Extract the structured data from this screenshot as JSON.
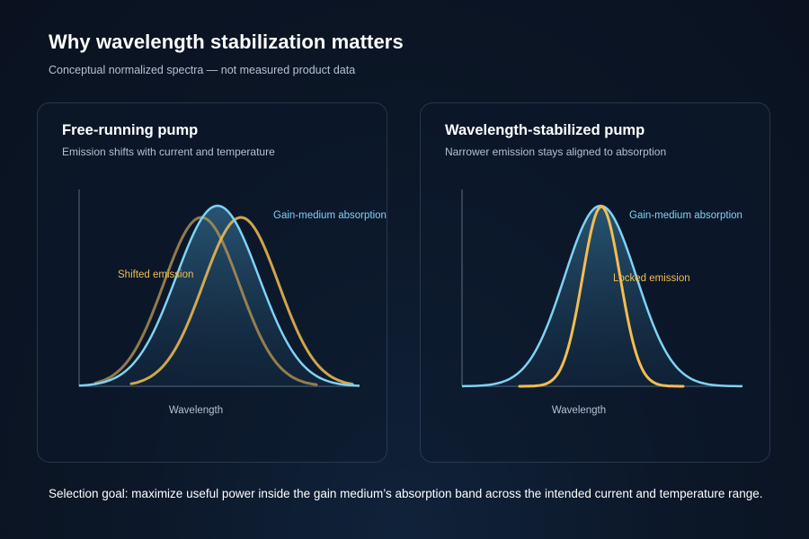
{
  "header": {
    "title": "Why wavelength stabilization matters",
    "subtitle": "Conceptual normalized spectra — not measured product data"
  },
  "panels": [
    {
      "title": "Free-running pump",
      "subtitle": "Emission shifts with current and temperature",
      "x_label": "Wavelength",
      "absorption_label": "Gain-medium absorption",
      "emission_label": "Shifted emission"
    },
    {
      "title": "Wavelength-stabilized pump",
      "subtitle": "Narrower emission stays aligned to absorption",
      "x_label": "Wavelength",
      "absorption_label": "Gain-medium absorption",
      "emission_label": "Locked emission"
    }
  ],
  "footer": {
    "text": "Selection goal: maximize useful power inside the gain medium’s absorption band across the intended current and temperature range."
  },
  "colors": {
    "absorption": "#7fd3f5",
    "emission": "#f3bd52",
    "emission_faded": "#b39455"
  }
}
